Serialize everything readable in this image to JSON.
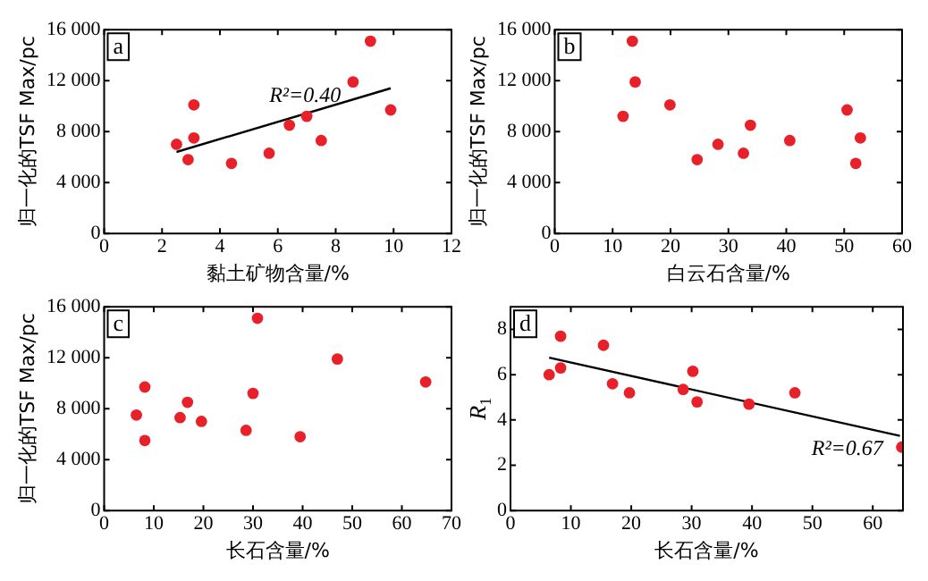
{
  "chart_data": [
    {
      "type": "scatter",
      "xlabel": "黏土矿物含量/%",
      "ylabel": "归一化的TSF Max/pc",
      "xlim": [
        0,
        12
      ],
      "xticks": [
        0,
        2,
        4,
        6,
        8,
        10,
        12
      ],
      "ylim": [
        0,
        16000
      ],
      "yticks": [
        0,
        {
          "value": 4000,
          "label": "4 000"
        },
        {
          "value": 8000,
          "label": "8 000"
        },
        {
          "value": 12000,
          "label": "12 000"
        },
        {
          "value": 16000,
          "label": "16 000"
        }
      ],
      "marker": "circle",
      "legend": false,
      "grid": false,
      "annotations": [
        "a",
        "R²=0.40"
      ],
      "x": [
        2.5,
        2.9,
        3.1,
        3.1,
        4.4,
        5.7,
        6.4,
        7.0,
        7.5,
        8.6,
        9.2,
        9.9
      ],
      "series": [
        {
          "color": "#e8202a",
          "values": [
            7000,
            5800,
            10100,
            7500,
            5500,
            6300,
            8500,
            9200,
            7300,
            11900,
            15100,
            9700
          ]
        },
        {
          "type": "line",
          "marker": "none",
          "color": "#000000",
          "x": [
            2.5,
            9.9
          ],
          "values": [
            6400,
            11400
          ]
        }
      ]
    },
    {
      "type": "scatter",
      "xlabel": "白云石含量/%",
      "ylabel": "归一化的TSF Max/pc",
      "xlim": [
        0,
        60
      ],
      "xticks": [
        0,
        10,
        20,
        30,
        40,
        50,
        60
      ],
      "ylim": [
        0,
        16000
      ],
      "yticks": [
        0,
        {
          "value": 4000,
          "label": "4 000"
        },
        {
          "value": 8000,
          "label": "8 000"
        },
        {
          "value": 12000,
          "label": "12 000"
        },
        {
          "value": 16000,
          "label": "16 000"
        }
      ],
      "marker": "circle",
      "legend": false,
      "grid": false,
      "annotations": [
        "b"
      ],
      "x": [
        11.8,
        13.4,
        13.9,
        19.9,
        24.6,
        28.2,
        32.6,
        33.8,
        40.6,
        50.5,
        52.0,
        52.8
      ],
      "series": [
        {
          "color": "#e8202a",
          "values": [
            9200,
            15100,
            11900,
            10100,
            5800,
            7000,
            6300,
            8500,
            7300,
            9700,
            5500,
            7500
          ]
        }
      ]
    },
    {
      "type": "scatter",
      "xlabel": "长石含量/%",
      "ylabel": "归一化的TSF Max/pc",
      "xlim": [
        0,
        70
      ],
      "xticks": [
        0,
        10,
        20,
        30,
        40,
        50,
        60,
        70
      ],
      "ylim": [
        0,
        16000
      ],
      "yticks": [
        0,
        {
          "value": 4000,
          "label": "4 000"
        },
        {
          "value": 8000,
          "label": "8 000"
        },
        {
          "value": 12000,
          "label": "12 000"
        },
        {
          "value": 16000,
          "label": "16 000"
        }
      ],
      "marker": "circle",
      "legend": false,
      "grid": false,
      "annotations": [
        "c"
      ],
      "x": [
        6.5,
        8.2,
        8.2,
        15.3,
        16.8,
        19.6,
        28.6,
        30.0,
        30.9,
        39.5,
        47.0,
        64.8
      ],
      "series": [
        {
          "color": "#e8202a",
          "values": [
            7500,
            9700,
            5500,
            7300,
            8500,
            7000,
            6300,
            9200,
            15100,
            5800,
            11900,
            10100
          ]
        }
      ]
    },
    {
      "type": "scatter",
      "xlabel": "长石含量/%",
      "ylabel": "R$_{1}$",
      "xlim": [
        0,
        65
      ],
      "xticks": [
        0,
        10,
        20,
        30,
        40,
        50,
        60
      ],
      "ylim": [
        0,
        9
      ],
      "yticks": [
        0,
        2,
        4,
        6,
        8
      ],
      "marker": "circle",
      "legend": false,
      "grid": false,
      "annotations": [
        "d",
        "R²=0.67"
      ],
      "x": [
        6.4,
        8.3,
        8.3,
        15.4,
        16.9,
        19.7,
        28.6,
        30.2,
        30.9,
        39.5,
        47.1,
        64.8
      ],
      "series": [
        {
          "color": "#e8202a",
          "values": [
            6.0,
            7.7,
            6.3,
            7.3,
            5.6,
            5.2,
            5.35,
            6.15,
            4.8,
            4.7,
            5.2,
            2.8
          ]
        },
        {
          "type": "line",
          "marker": "none",
          "color": "#000000",
          "x": [
            6.4,
            64.5
          ],
          "values": [
            6.75,
            3.3
          ]
        }
      ]
    }
  ]
}
